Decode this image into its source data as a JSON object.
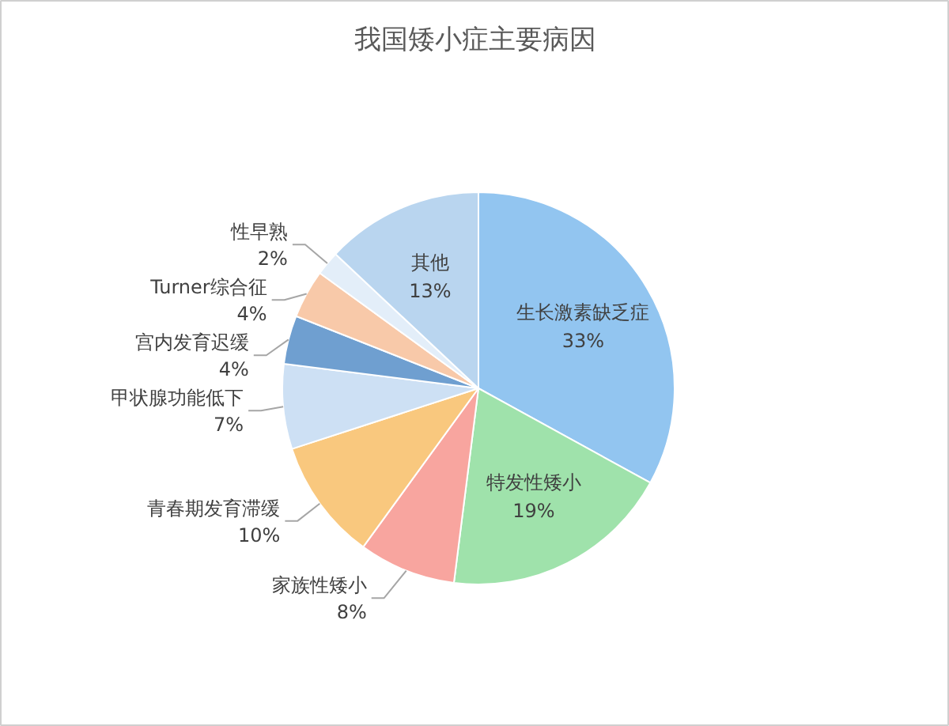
{
  "chart_data": {
    "type": "pie",
    "title": "我国矮小症主要病因",
    "categories": [
      "生长激素缺乏症",
      "特发性矮小",
      "家族性矮小",
      "青春期发育滞缓",
      "甲状腺功能低下",
      "宫内发育迟缓",
      "Turner综合征",
      "性早熟",
      "其他"
    ],
    "values": [
      33,
      19,
      8,
      10,
      7,
      4,
      4,
      2,
      13
    ],
    "value_labels": [
      "33%",
      "19%",
      "8%",
      "10%",
      "7%",
      "4%",
      "4%",
      "2%",
      "13%"
    ],
    "colors": [
      "#92c5f0",
      "#9fe2ab",
      "#f8a59f",
      "#f9c87e",
      "#cde0f4",
      "#6f9fd0",
      "#f8c9a9",
      "#e3eef9",
      "#b9d5ef"
    ]
  }
}
